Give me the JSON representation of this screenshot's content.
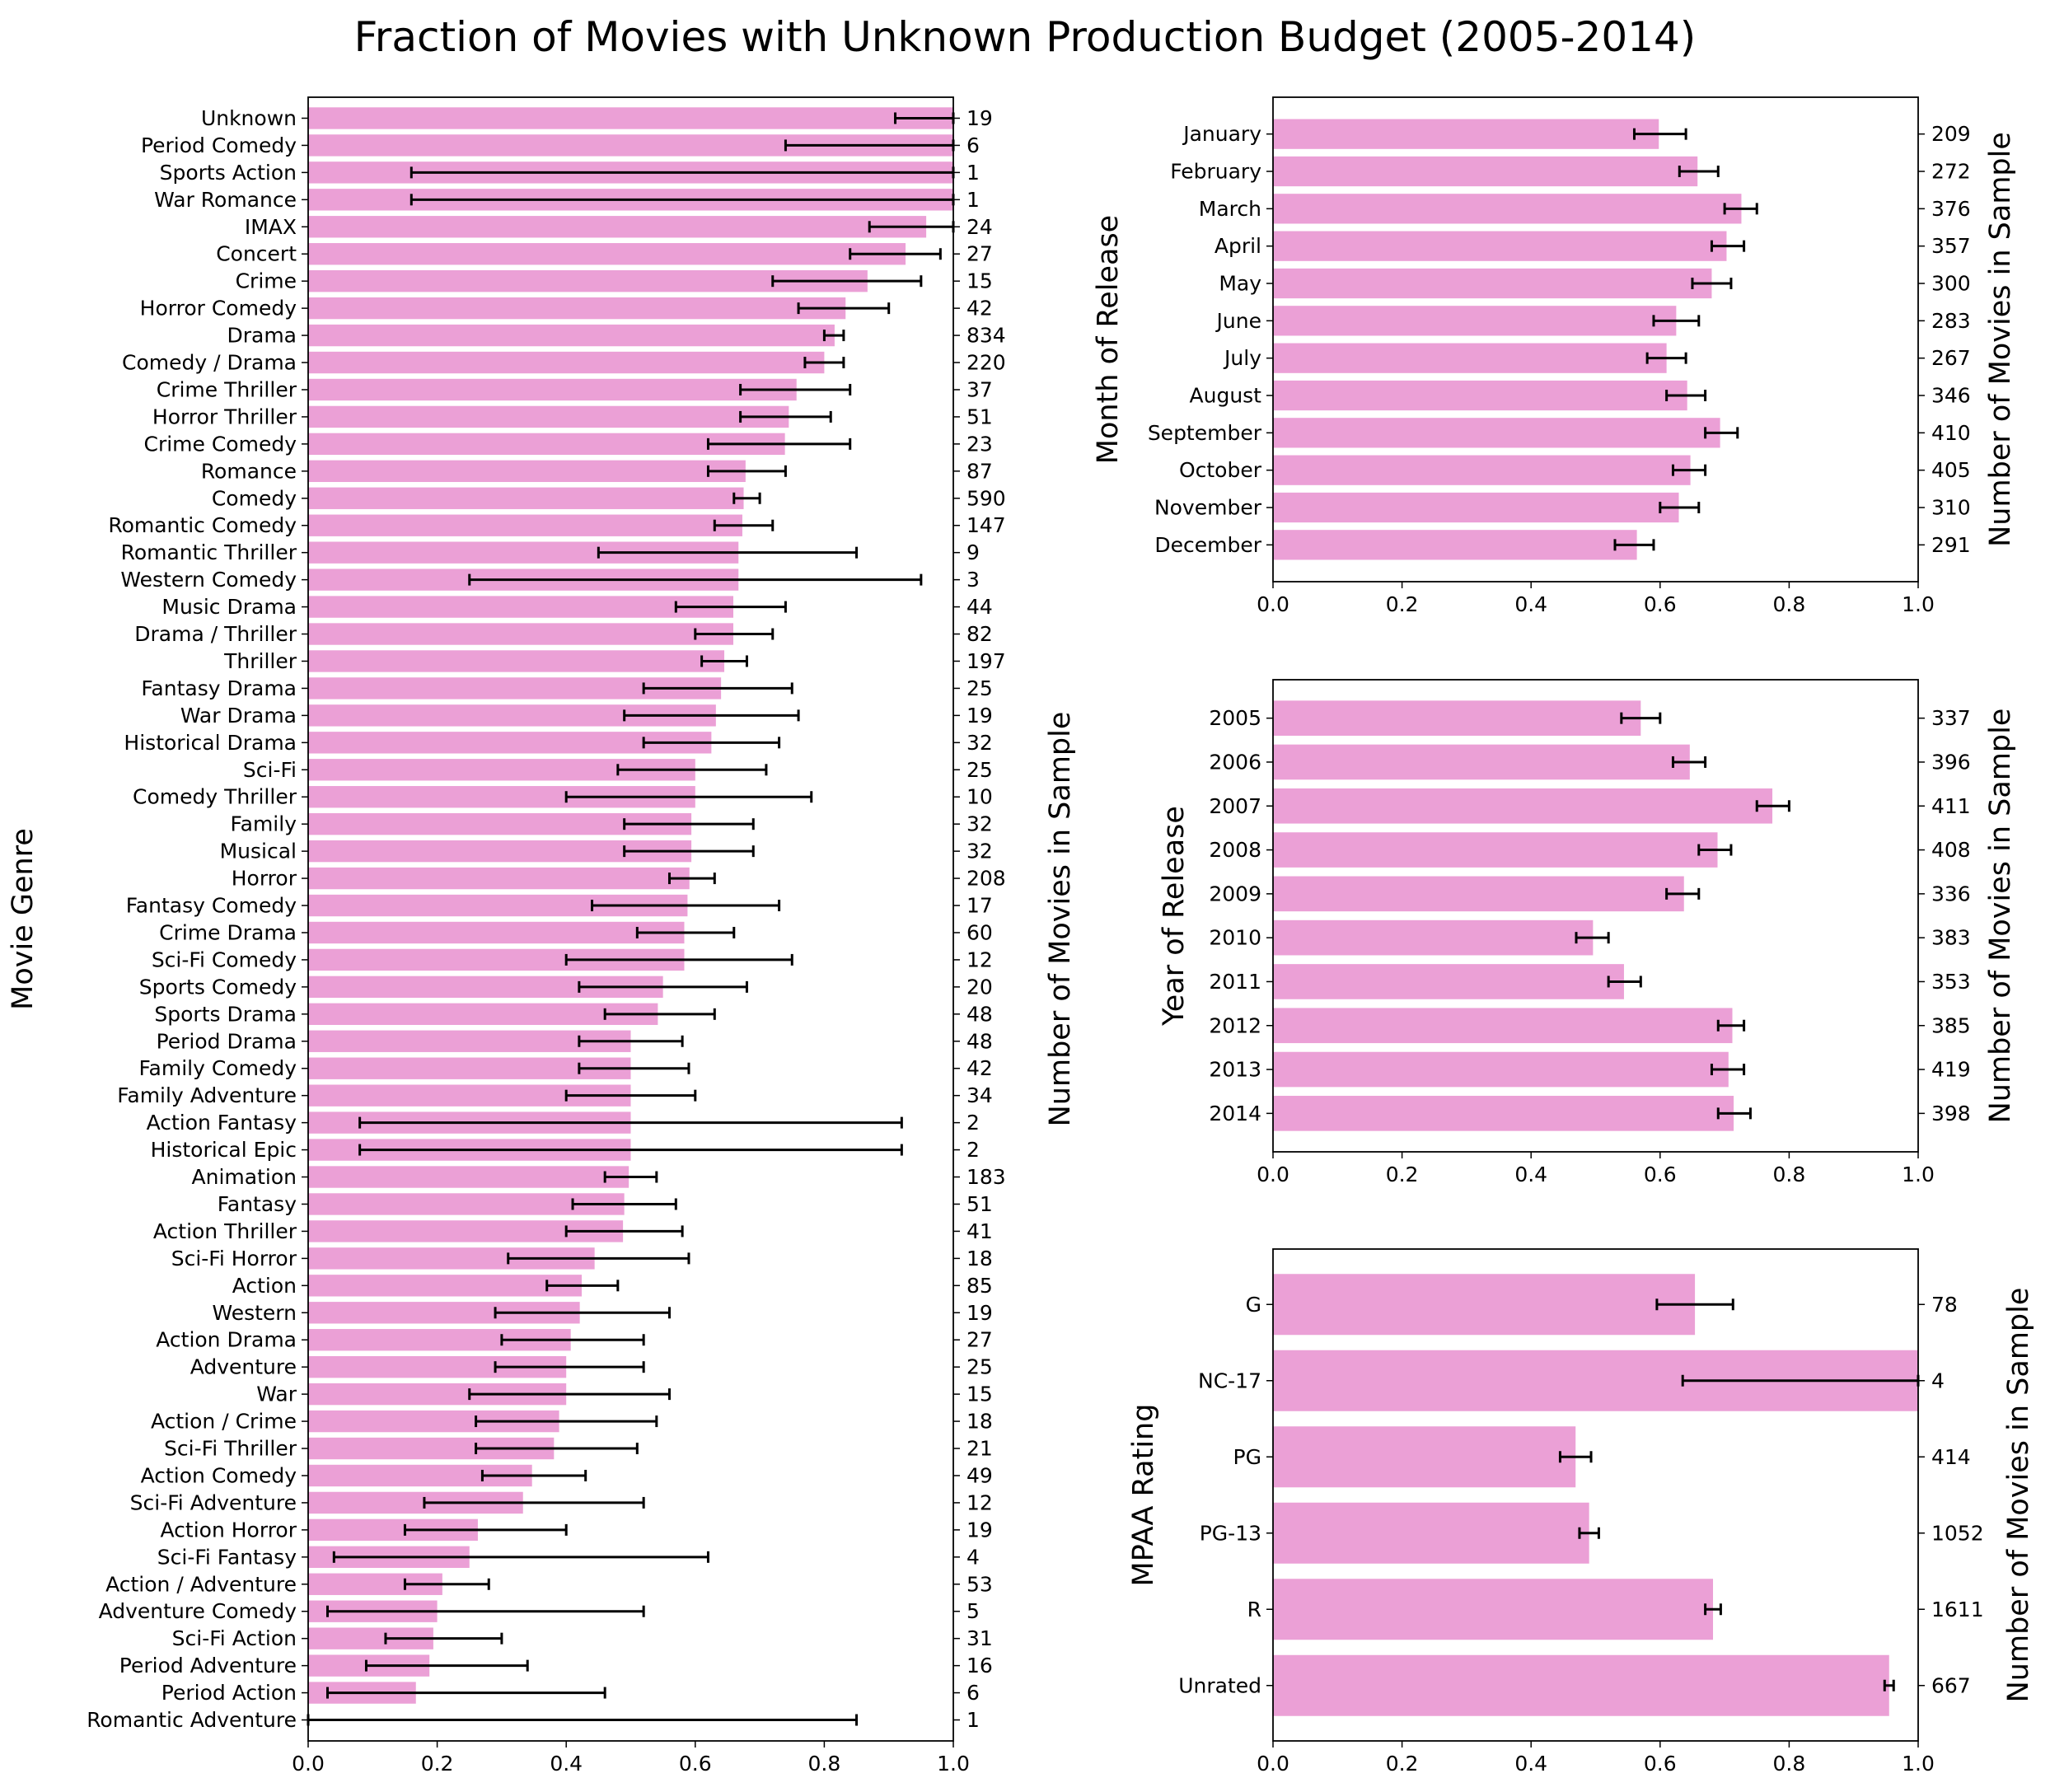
{
  "title": "Fraction of Movies with Unknown Production Budget (2005-2014)",
  "bar_color": "#eba0d6",
  "error_color": "#000000",
  "xticks": [
    "0.0",
    "0.2",
    "0.4",
    "0.6",
    "0.8",
    "1.0"
  ],
  "chart_data": [
    {
      "type": "bar",
      "orientation": "horizontal",
      "ylabel": "Movie Genre",
      "ylabel_right": "Number of Movies in Sample",
      "xlim": [
        0,
        1
      ],
      "categories": [
        "Unknown",
        "Period Comedy",
        "Sports Action",
        "War Romance",
        "IMAX",
        "Concert",
        "Crime",
        "Horror Comedy",
        "Drama",
        "Comedy / Drama",
        "Crime Thriller",
        "Horror Thriller",
        "Crime Comedy",
        "Romance",
        "Comedy",
        "Romantic Comedy",
        "Romantic Thriller",
        "Western Comedy",
        "Music Drama",
        "Drama / Thriller",
        "Thriller",
        "Fantasy Drama",
        "War Drama",
        "Historical Drama",
        "Sci-Fi",
        "Comedy Thriller",
        "Family",
        "Musical",
        "Horror",
        "Fantasy Comedy",
        "Crime Drama",
        "Sci-Fi Comedy",
        "Sports Comedy",
        "Sports Drama",
        "Period Drama",
        "Family Comedy",
        "Family Adventure",
        "Action Fantasy",
        "Historical Epic",
        "Animation",
        "Fantasy",
        "Action Thriller",
        "Sci-Fi Horror",
        "Action",
        "Western",
        "Action Drama",
        "Adventure",
        "War",
        "Action / Crime",
        "Sci-Fi Thriller",
        "Action Comedy",
        "Sci-Fi Adventure",
        "Action Horror",
        "Sci-Fi Fantasy",
        "Action / Adventure",
        "Adventure Comedy",
        "Sci-Fi Action",
        "Period Adventure",
        "Period Action",
        "Romantic Adventure"
      ],
      "values": [
        1.0,
        1.0,
        1.0,
        1.0,
        0.958,
        0.926,
        0.867,
        0.833,
        0.816,
        0.8,
        0.757,
        0.745,
        0.739,
        0.678,
        0.675,
        0.673,
        0.667,
        0.667,
        0.659,
        0.659,
        0.645,
        0.64,
        0.632,
        0.625,
        0.6,
        0.6,
        0.594,
        0.594,
        0.591,
        0.588,
        0.583,
        0.583,
        0.55,
        0.542,
        0.5,
        0.5,
        0.5,
        0.5,
        0.5,
        0.497,
        0.49,
        0.488,
        0.444,
        0.424,
        0.421,
        0.407,
        0.4,
        0.4,
        0.389,
        0.381,
        0.347,
        0.333,
        0.263,
        0.25,
        0.208,
        0.2,
        0.194,
        0.188,
        0.167,
        0.0
      ],
      "err_low": [
        0.91,
        0.74,
        0.16,
        0.16,
        0.87,
        0.84,
        0.72,
        0.76,
        0.8,
        0.77,
        0.67,
        0.67,
        0.62,
        0.62,
        0.66,
        0.63,
        0.45,
        0.25,
        0.57,
        0.6,
        0.61,
        0.52,
        0.49,
        0.52,
        0.48,
        0.4,
        0.49,
        0.49,
        0.56,
        0.44,
        0.51,
        0.4,
        0.42,
        0.46,
        0.42,
        0.42,
        0.4,
        0.08,
        0.08,
        0.46,
        0.41,
        0.4,
        0.31,
        0.37,
        0.29,
        0.3,
        0.29,
        0.25,
        0.26,
        0.26,
        0.27,
        0.18,
        0.15,
        0.04,
        0.15,
        0.03,
        0.12,
        0.09,
        0.03,
        0.0
      ],
      "err_high": [
        1.0,
        1.0,
        1.0,
        1.0,
        1.0,
        0.98,
        0.95,
        0.9,
        0.83,
        0.83,
        0.84,
        0.81,
        0.84,
        0.74,
        0.7,
        0.72,
        0.85,
        0.95,
        0.74,
        0.72,
        0.68,
        0.75,
        0.76,
        0.73,
        0.71,
        0.78,
        0.69,
        0.69,
        0.63,
        0.73,
        0.66,
        0.75,
        0.68,
        0.63,
        0.58,
        0.59,
        0.6,
        0.92,
        0.92,
        0.54,
        0.57,
        0.58,
        0.59,
        0.48,
        0.56,
        0.52,
        0.52,
        0.56,
        0.54,
        0.51,
        0.43,
        0.52,
        0.4,
        0.62,
        0.28,
        0.52,
        0.3,
        0.34,
        0.46,
        0.85
      ],
      "counts": [
        "19",
        "6",
        "1",
        "1",
        "24",
        "27",
        "15",
        "42",
        "834",
        "220",
        "37",
        "51",
        "23",
        "87",
        "590",
        "147",
        "9",
        "3",
        "44",
        "82",
        "197",
        "25",
        "19",
        "32",
        "25",
        "10",
        "32",
        "32",
        "208",
        "17",
        "60",
        "12",
        "20",
        "48",
        "48",
        "42",
        "34",
        "2",
        "2",
        "183",
        "51",
        "41",
        "18",
        "85",
        "19",
        "27",
        "25",
        "15",
        "18",
        "21",
        "49",
        "12",
        "19",
        "4",
        "53",
        "5",
        "31",
        "16",
        "6",
        "1"
      ]
    },
    {
      "type": "bar",
      "orientation": "horizontal",
      "ylabel": "Month of Release",
      "ylabel_right": "Number of Movies in Sample",
      "xlim": [
        0,
        1
      ],
      "categories": [
        "January",
        "February",
        "March",
        "April",
        "May",
        "June",
        "July",
        "August",
        "September",
        "October",
        "November",
        "December"
      ],
      "values": [
        0.598,
        0.658,
        0.726,
        0.703,
        0.68,
        0.625,
        0.61,
        0.642,
        0.693,
        0.647,
        0.629,
        0.564
      ],
      "err_low": [
        0.56,
        0.63,
        0.7,
        0.68,
        0.65,
        0.59,
        0.58,
        0.61,
        0.67,
        0.62,
        0.6,
        0.53
      ],
      "err_high": [
        0.64,
        0.69,
        0.75,
        0.73,
        0.71,
        0.66,
        0.64,
        0.67,
        0.72,
        0.67,
        0.66,
        0.59
      ],
      "counts": [
        "209",
        "272",
        "376",
        "357",
        "300",
        "283",
        "267",
        "346",
        "410",
        "405",
        "310",
        "291"
      ]
    },
    {
      "type": "bar",
      "orientation": "horizontal",
      "ylabel": "Year of Release",
      "ylabel_right": "Number of Movies in Sample",
      "xlim": [
        0,
        1
      ],
      "categories": [
        "2005",
        "2006",
        "2007",
        "2008",
        "2009",
        "2010",
        "2011",
        "2012",
        "2013",
        "2014"
      ],
      "values": [
        0.57,
        0.646,
        0.774,
        0.689,
        0.637,
        0.496,
        0.544,
        0.712,
        0.706,
        0.714
      ],
      "err_low": [
        0.54,
        0.62,
        0.75,
        0.66,
        0.61,
        0.47,
        0.52,
        0.69,
        0.68,
        0.69
      ],
      "err_high": [
        0.6,
        0.67,
        0.8,
        0.71,
        0.66,
        0.52,
        0.57,
        0.73,
        0.73,
        0.74
      ],
      "counts": [
        "337",
        "396",
        "411",
        "408",
        "336",
        "383",
        "353",
        "385",
        "419",
        "398"
      ]
    },
    {
      "type": "bar",
      "orientation": "horizontal",
      "ylabel": "MPAA Rating",
      "ylabel_right": "Number of Movies in Sample",
      "xlim": [
        0,
        1
      ],
      "categories": [
        "G",
        "NC-17",
        "PG",
        "PG-13",
        "R",
        "Unrated"
      ],
      "values": [
        0.654,
        1.0,
        0.469,
        0.49,
        0.682,
        0.955
      ],
      "err_low": [
        0.595,
        0.635,
        0.445,
        0.475,
        0.67,
        0.948
      ],
      "err_high": [
        0.713,
        1.0,
        0.493,
        0.505,
        0.694,
        0.962
      ],
      "counts": [
        "78",
        "4",
        "414",
        "1052",
        "1611",
        "667"
      ]
    }
  ]
}
